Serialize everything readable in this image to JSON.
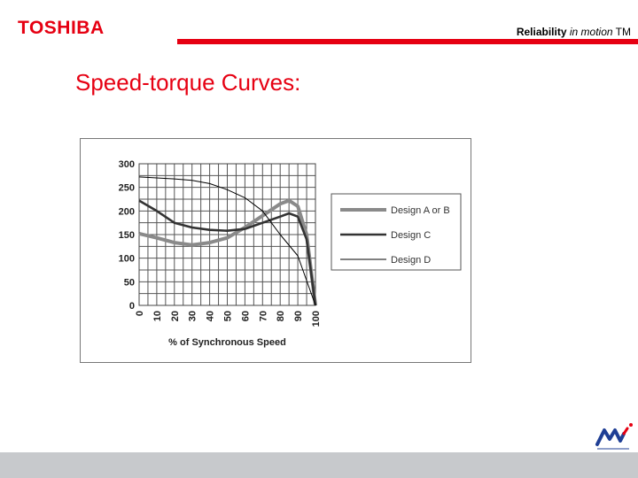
{
  "header": {
    "logo_text": "TOSHIBA",
    "tagline_bold": "Reliability",
    "tagline_italic": "in motion",
    "tagline_tm": "TM",
    "accent_color": "#e60012"
  },
  "slide": {
    "title": "Speed-torque Curves:"
  },
  "chart_data": {
    "type": "line",
    "xlabel": "% of Synchronous Speed",
    "ylabel": "",
    "xlim": [
      0,
      100
    ],
    "ylim": [
      0,
      300
    ],
    "xticks": [
      0,
      10,
      20,
      30,
      40,
      50,
      60,
      70,
      80,
      90,
      100
    ],
    "yticks": [
      0,
      50,
      100,
      150,
      200,
      250,
      300
    ],
    "grid": true,
    "legend_position": "right",
    "series": [
      {
        "name": "Design A or B",
        "color": "#8a8a8a",
        "x": [
          0,
          10,
          20,
          30,
          40,
          50,
          60,
          70,
          80,
          85,
          90,
          95,
          100
        ],
        "y": [
          152,
          143,
          133,
          128,
          133,
          143,
          165,
          190,
          215,
          222,
          210,
          150,
          0
        ]
      },
      {
        "name": "Design C",
        "color": "#333333",
        "x": [
          0,
          10,
          20,
          30,
          40,
          50,
          60,
          70,
          80,
          85,
          90,
          95,
          100
        ],
        "y": [
          222,
          200,
          175,
          165,
          160,
          158,
          162,
          175,
          188,
          195,
          188,
          140,
          0
        ]
      },
      {
        "name": "Design D",
        "color": "#000000",
        "x": [
          0,
          10,
          20,
          30,
          40,
          50,
          60,
          70,
          80,
          90,
          100
        ],
        "y": [
          272,
          270,
          268,
          265,
          258,
          245,
          228,
          200,
          150,
          105,
          0
        ]
      }
    ]
  }
}
